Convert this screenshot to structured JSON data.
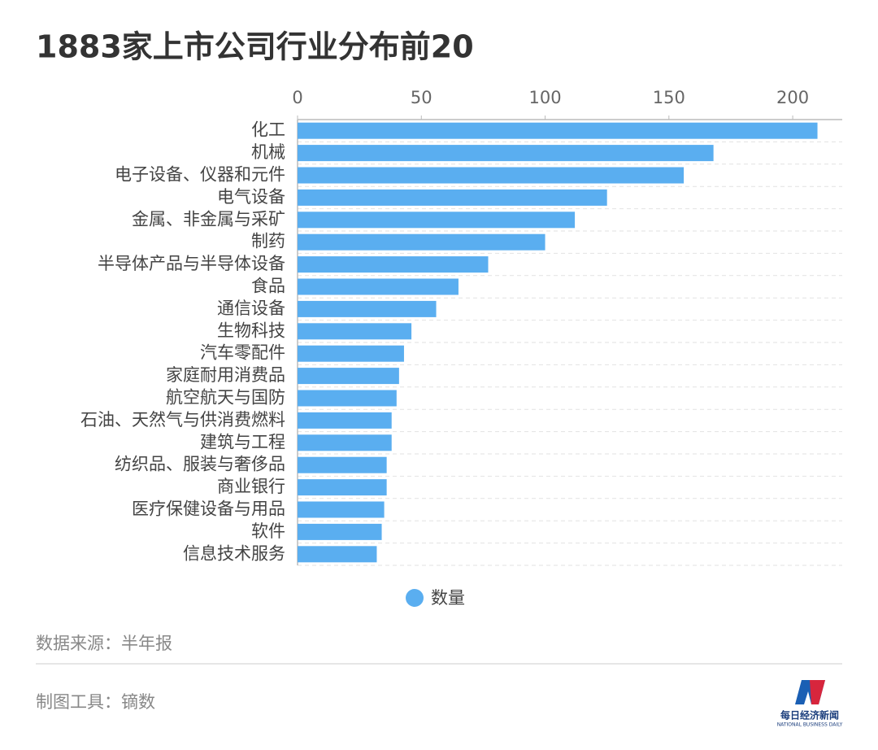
{
  "chart_data": {
    "type": "hbar",
    "title": "1883家上市公司行业分布前20",
    "categories": [
      "化工",
      "机械",
      "电子设备、仪器和元件",
      "电气设备",
      "金属、非金属与采矿",
      "制药",
      "半导体产品与半导体设备",
      "食品",
      "通信设备",
      "生物科技",
      "汽车零配件",
      "家庭耐用消费品",
      "航空航天与国防",
      "石油、天然气与供消费燃料",
      "建筑与工程",
      "纺织品、服装与奢侈品",
      "商业银行",
      "医疗保健设备与用品",
      "软件",
      "信息技术服务"
    ],
    "series": [
      {
        "name": "数量",
        "color": "#5aaef0",
        "values": [
          210,
          168,
          156,
          125,
          112,
          100,
          77,
          65,
          56,
          46,
          43,
          41,
          40,
          38,
          38,
          36,
          36,
          35,
          34,
          32
        ]
      }
    ],
    "xlim": [
      0,
      220
    ],
    "xticks": [
      0,
      50,
      100,
      150,
      200
    ],
    "legend": "bottom"
  },
  "footer": {
    "source": "数据来源：半年报",
    "tool": "制图工具：镝数"
  },
  "logo": {
    "name": "每日经济新闻",
    "english": "NATIONAL BUSINESS DAILY"
  }
}
